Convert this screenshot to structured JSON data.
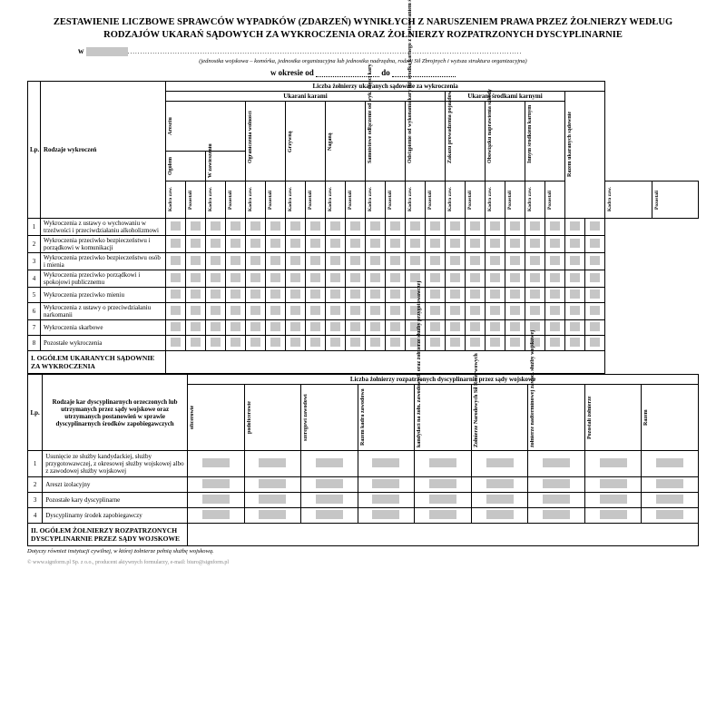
{
  "title": "ZESTAWIENIE LICZBOWE SPRAWCÓW WYPADKÓW (ZDARZEŃ) WYNIKŁYCH Z NARUSZENIEM PRAWA PRZEZ ŻOŁNIERZY WEDŁUG RODZAJÓW UKARAŃ SĄDOWYCH ZA WYKROCZENIA ORAZ ŻOŁNIERZY ROZPATRZONYCH DYSCYPLINARNIE",
  "w_label": "w",
  "w_dots": "..............................................................................................................................................................",
  "note1": "(jednostka wojskowa – komórka, jednostka organizacyjna lub jednostka nadrzędna, rodzaj Sił Zbrojnych i wyższa struktura organizacyjna)",
  "period_l": "w okresie od",
  "period_m": "do",
  "t1": {
    "main_hdr": "Liczba żołnierzy ukaranych sądownie za wykroczenia",
    "sub1": "Ukarani karami",
    "sub2": "Ukarani środkami karnymi",
    "lp": "Lp.",
    "desc": "Rodzaje wykroczeń",
    "cols_top": [
      "Aresztu",
      "",
      "Ograniczenia wolności",
      "Grzywną",
      "Naganą",
      "Samoistowe odłączenie od wyk. części kary",
      "Odstąpienie od wykonania kary lub środka karnego z zastosowaniem środka oddziaływania",
      "Zakazu prowadzenia pojazdów",
      "Obowiązku naprawienia szkody",
      "Innym środkiem karnym",
      "Razem ukaranych sądownie"
    ],
    "aresztu_sub": [
      "Ogółem",
      "W zawieszeniu"
    ],
    "sub_cols": [
      "Kadra zaw.",
      "Pozostali"
    ],
    "rows": [
      {
        "n": "1",
        "d": "Wykroczenia z ustawy o wychowaniu w trzeźwości i przeciwdziałaniu alkoholizmowi"
      },
      {
        "n": "2",
        "d": "Wykroczenia przeciwko bezpieczeństwu i porządkowi w komunikacji"
      },
      {
        "n": "3",
        "d": "Wykroczenia przeciwko bezpieczeństwu osób i mienia"
      },
      {
        "n": "4",
        "d": "Wykroczenia przeciwko porządkowi i spokojowi publicznemu"
      },
      {
        "n": "5",
        "d": "Wykroczenia przeciwko mieniu"
      },
      {
        "n": "6",
        "d": "Wykroczenia z ustawy o przeciwdziałaniu narkomanii"
      },
      {
        "n": "7",
        "d": "Wykroczenia skarbowe"
      },
      {
        "n": "8",
        "d": "Pozostałe wykroczenia"
      }
    ],
    "total": "I.  OGÓŁEM UKARANYCH SĄDOWNIE ZA WYKROCZENIA"
  },
  "t2": {
    "main_hdr": "Liczba żołnierzy rozpatrzonych dyscyplinarnie przez sądy wojskowe",
    "lp": "Lp.",
    "desc": "Rodzaje kar dyscyplinarnych orzeczonych lub utrzymanych przez sądy wojskowe oraz utrzymanych postanowień w sprawie dyscyplinarnych środków zapobiegawczych",
    "cols": [
      "oficerowie",
      "podoficerowie",
      "szeregowi zawodowi",
      "Razem kadra zawodowa",
      "kandydaci na żołn. zawodowych oraz żołnierze służby przygotowawczej",
      "Żołnierze Narodowych Sił Rezerwowych",
      "żołnierze nadterminowej zawod. służby wojskowej",
      "Pozostali żołnierze",
      "Razem"
    ],
    "rows": [
      {
        "n": "1",
        "d": "Usunięcie ze służby kandydackiej, służby przygotowawczej, z okresowej służby wojskowej albo z zawodowej służby wojskowej"
      },
      {
        "n": "2",
        "d": "Areszt izolacyjny"
      },
      {
        "n": "3",
        "d": "Pozostałe kary dyscyplinarne"
      },
      {
        "n": "4",
        "d": "Dyscyplinarny środek zapobiegawczy"
      }
    ],
    "total": "II. OGÓŁEM ŻOŁNIERZY ROZPATRZONYCH DYSCYPLINARNIE PRZEZ SĄDY WOJSKOWE"
  },
  "footnote": "Dotyczy również instytucji cywilnej, w której żołnierze pełnią służbę wojskową.",
  "copyright": "© www.signform.pl Sp. z o.o., producent aktywnych formularzy, e-mail: biuro@signform.pl"
}
